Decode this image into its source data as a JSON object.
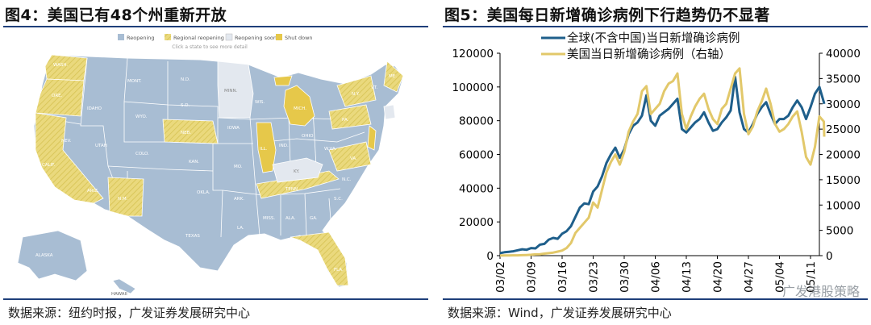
{
  "left": {
    "title": "图4：美国已有48个州重新开放",
    "source": "数据来源：纽约时报，广发证券发展研究中心",
    "map": {
      "legend": [
        {
          "label": "Reopening",
          "color": "#a8bdd3"
        },
        {
          "label": "Regional reopening",
          "color": "#e2d97a"
        },
        {
          "label": "Reopening soon",
          "color": "#e3e8ef"
        },
        {
          "label": "Shut down",
          "color": "#e6c84a"
        }
      ],
      "hint": "Click a state to see more detail",
      "state_labels": [
        "WASH.",
        "ORE.",
        "CALIF.",
        "IDAHO",
        "NEV.",
        "MONT.",
        "WYO.",
        "UTAH",
        "ARIZ.",
        "COLO.",
        "N.M.",
        "N.D.",
        "S.D.",
        "NEB.",
        "KAN.",
        "OKLA.",
        "TEXAS",
        "MINN.",
        "IOWA",
        "MO.",
        "ARK.",
        "LA.",
        "WIS.",
        "ILL.",
        "MICH.",
        "IND.",
        "OHIO",
        "KY.",
        "TENN.",
        "MISS.",
        "ALA.",
        "GA.",
        "FLA.",
        "S.C.",
        "N.C.",
        "VA.",
        "W.VA.",
        "PA.",
        "N.Y.",
        "ME.",
        "VT.",
        "ALASKA",
        "HAWAII"
      ]
    }
  },
  "right": {
    "title": "图5：美国每日新增确诊病例下行趋势仍不显著",
    "source": "数据来源：Wind，广发证券发展研究中心",
    "watermark": "广发港股策略",
    "colors": {
      "global": "#1f5f8b",
      "us": "#e2c86a",
      "axis": "#000000"
    }
  },
  "chart_data": {
    "type": "line",
    "x_ticks": [
      "03/02",
      "03/09",
      "03/16",
      "03/23",
      "03/30",
      "04/06",
      "04/13",
      "04/20",
      "04/27",
      "05/04",
      "05/11"
    ],
    "x_range": [
      "2020-03-02",
      "2020-05-13"
    ],
    "ylim_left": [
      0,
      120000
    ],
    "yticks_left": [
      "0",
      "20000",
      "40000",
      "60000",
      "80000",
      "100000",
      "120000"
    ],
    "ylim_right": [
      0,
      40000
    ],
    "yticks_right": [
      "0",
      "5000",
      "10000",
      "15000",
      "20000",
      "25000",
      "30000",
      "35000",
      "40000"
    ],
    "legend_position": "top",
    "series": [
      {
        "name": "全球(不含中国)当日新增确诊病例",
        "axis": "left",
        "values": [
          [
            "2020-03-02",
            1500
          ],
          [
            "2020-03-03",
            2000
          ],
          [
            "2020-03-04",
            2300
          ],
          [
            "2020-03-05",
            2600
          ],
          [
            "2020-03-06",
            3200
          ],
          [
            "2020-03-07",
            3800
          ],
          [
            "2020-03-08",
            3500
          ],
          [
            "2020-03-09",
            4500
          ],
          [
            "2020-03-10",
            4300
          ],
          [
            "2020-03-11",
            6500
          ],
          [
            "2020-03-12",
            7000
          ],
          [
            "2020-03-13",
            9500
          ],
          [
            "2020-03-14",
            10500
          ],
          [
            "2020-03-15",
            10000
          ],
          [
            "2020-03-16",
            13000
          ],
          [
            "2020-03-17",
            14500
          ],
          [
            "2020-03-18",
            17500
          ],
          [
            "2020-03-19",
            23000
          ],
          [
            "2020-03-20",
            28500
          ],
          [
            "2020-03-21",
            31000
          ],
          [
            "2020-03-22",
            30500
          ],
          [
            "2020-03-23",
            38000
          ],
          [
            "2020-03-24",
            41000
          ],
          [
            "2020-03-25",
            47000
          ],
          [
            "2020-03-26",
            55000
          ],
          [
            "2020-03-27",
            60000
          ],
          [
            "2020-03-28",
            64000
          ],
          [
            "2020-03-29",
            58000
          ],
          [
            "2020-03-30",
            63000
          ],
          [
            "2020-03-31",
            72000
          ],
          [
            "2020-04-01",
            77000
          ],
          [
            "2020-04-02",
            79000
          ],
          [
            "2020-04-03",
            83000
          ],
          [
            "2020-04-04",
            95000
          ],
          [
            "2020-04-05",
            80000
          ],
          [
            "2020-04-06",
            77000
          ],
          [
            "2020-04-07",
            83000
          ],
          [
            "2020-04-08",
            85000
          ],
          [
            "2020-04-09",
            87000
          ],
          [
            "2020-04-10",
            90000
          ],
          [
            "2020-04-11",
            93000
          ],
          [
            "2020-04-12",
            75000
          ],
          [
            "2020-04-13",
            73000
          ],
          [
            "2020-04-14",
            76000
          ],
          [
            "2020-04-15",
            79000
          ],
          [
            "2020-04-16",
            81000
          ],
          [
            "2020-04-17",
            85000
          ],
          [
            "2020-04-18",
            79000
          ],
          [
            "2020-04-19",
            74000
          ],
          [
            "2020-04-20",
            75000
          ],
          [
            "2020-04-21",
            79000
          ],
          [
            "2020-04-22",
            82000
          ],
          [
            "2020-04-23",
            86000
          ],
          [
            "2020-04-24",
            106000
          ],
          [
            "2020-04-25",
            85000
          ],
          [
            "2020-04-26",
            75000
          ],
          [
            "2020-04-27",
            73000
          ],
          [
            "2020-04-28",
            78000
          ],
          [
            "2020-04-29",
            84000
          ],
          [
            "2020-04-30",
            88000
          ],
          [
            "2020-05-01",
            91000
          ],
          [
            "2020-05-02",
            84000
          ],
          [
            "2020-05-03",
            78000
          ],
          [
            "2020-05-04",
            81000
          ],
          [
            "2020-05-05",
            81000
          ],
          [
            "2020-05-06",
            83000
          ],
          [
            "2020-05-07",
            88000
          ],
          [
            "2020-05-08",
            92000
          ],
          [
            "2020-05-09",
            88000
          ],
          [
            "2020-05-10",
            81000
          ],
          [
            "2020-05-11",
            88000
          ],
          [
            "2020-05-12",
            96000
          ],
          [
            "2020-05-13",
            100000
          ],
          [
            "2020-05-14",
            91000
          ],
          [
            "2020-05-15",
            90000
          ]
        ]
      },
      {
        "name": "美国当日新增确诊病例（右轴）",
        "axis": "right",
        "values": [
          [
            "2020-03-02",
            20
          ],
          [
            "2020-03-03",
            25
          ],
          [
            "2020-03-04",
            30
          ],
          [
            "2020-03-05",
            60
          ],
          [
            "2020-03-06",
            70
          ],
          [
            "2020-03-07",
            100
          ],
          [
            "2020-03-08",
            120
          ],
          [
            "2020-03-09",
            180
          ],
          [
            "2020-03-10",
            250
          ],
          [
            "2020-03-11",
            280
          ],
          [
            "2020-03-12",
            400
          ],
          [
            "2020-03-13",
            500
          ],
          [
            "2020-03-14",
            600
          ],
          [
            "2020-03-15",
            800
          ],
          [
            "2020-03-16",
            1000
          ],
          [
            "2020-03-17",
            1500
          ],
          [
            "2020-03-18",
            2500
          ],
          [
            "2020-03-19",
            4500
          ],
          [
            "2020-03-20",
            5500
          ],
          [
            "2020-03-21",
            6500
          ],
          [
            "2020-03-22",
            7500
          ],
          [
            "2020-03-23",
            10500
          ],
          [
            "2020-03-24",
            9500
          ],
          [
            "2020-03-25",
            13000
          ],
          [
            "2020-03-26",
            16500
          ],
          [
            "2020-03-27",
            18500
          ],
          [
            "2020-03-28",
            20000
          ],
          [
            "2020-03-29",
            18000
          ],
          [
            "2020-03-30",
            20500
          ],
          [
            "2020-03-31",
            24500
          ],
          [
            "2020-04-01",
            26500
          ],
          [
            "2020-04-02",
            28000
          ],
          [
            "2020-04-03",
            32500
          ],
          [
            "2020-04-04",
            33500
          ],
          [
            "2020-04-05",
            28000
          ],
          [
            "2020-04-06",
            29000
          ],
          [
            "2020-04-07",
            30000
          ],
          [
            "2020-04-08",
            32500
          ],
          [
            "2020-04-09",
            34000
          ],
          [
            "2020-04-10",
            34500
          ],
          [
            "2020-04-11",
            36000
          ],
          [
            "2020-04-12",
            28000
          ],
          [
            "2020-04-13",
            25000
          ],
          [
            "2020-04-14",
            27500
          ],
          [
            "2020-04-15",
            29500
          ],
          [
            "2020-04-16",
            31000
          ],
          [
            "2020-04-17",
            32000
          ],
          [
            "2020-04-18",
            29000
          ],
          [
            "2020-04-19",
            27000
          ],
          [
            "2020-04-20",
            26000
          ],
          [
            "2020-04-21",
            29000
          ],
          [
            "2020-04-22",
            30000
          ],
          [
            "2020-04-23",
            33000
          ],
          [
            "2020-04-24",
            36000
          ],
          [
            "2020-04-25",
            37000
          ],
          [
            "2020-04-26",
            28000
          ],
          [
            "2020-04-27",
            24000
          ],
          [
            "2020-04-28",
            25500
          ],
          [
            "2020-04-29",
            28500
          ],
          [
            "2020-04-30",
            30500
          ],
          [
            "2020-05-01",
            33000
          ],
          [
            "2020-05-02",
            30000
          ],
          [
            "2020-05-03",
            26000
          ],
          [
            "2020-05-04",
            24500
          ],
          [
            "2020-05-05",
            25000
          ],
          [
            "2020-05-06",
            26000
          ],
          [
            "2020-05-07",
            27500
          ],
          [
            "2020-05-08",
            28500
          ],
          [
            "2020-05-09",
            24500
          ],
          [
            "2020-05-10",
            19500
          ],
          [
            "2020-05-11",
            18000
          ],
          [
            "2020-05-12",
            21500
          ],
          [
            "2020-05-13",
            27500
          ],
          [
            "2020-05-14",
            26500
          ],
          [
            "2020-05-15",
            23500
          ]
        ]
      }
    ]
  }
}
